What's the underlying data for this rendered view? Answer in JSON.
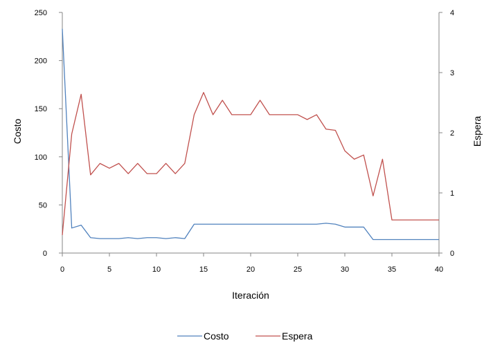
{
  "chart_data": {
    "type": "line",
    "title": "",
    "xlabel": "Iteración",
    "ylabel_left": "Costo",
    "ylabel_right": "Espera",
    "xlim": [
      0,
      40
    ],
    "ylim_left": [
      0,
      250
    ],
    "ylim_right": [
      0,
      4
    ],
    "x_ticks": [
      0,
      5,
      10,
      15,
      20,
      25,
      30,
      35,
      40
    ],
    "y_left_ticks": [
      0,
      50,
      100,
      150,
      200,
      250
    ],
    "y_right_ticks": [
      0,
      1,
      2,
      3,
      4
    ],
    "grid": false,
    "legend_position": "bottom",
    "x": [
      0,
      1,
      2,
      3,
      4,
      5,
      6,
      7,
      8,
      9,
      10,
      11,
      12,
      13,
      14,
      15,
      16,
      17,
      18,
      19,
      20,
      21,
      22,
      23,
      24,
      25,
      26,
      27,
      28,
      29,
      30,
      31,
      32,
      33,
      34,
      35,
      36,
      37,
      38,
      39,
      40
    ],
    "series": [
      {
        "name": "Costo",
        "axis": "left",
        "color": "#4F81BD",
        "values": [
          233,
          26,
          29,
          16,
          15,
          15,
          15,
          16,
          15,
          16,
          16,
          15,
          16,
          15,
          30,
          30,
          30,
          30,
          30,
          30,
          30,
          30,
          30,
          30,
          30,
          30,
          30,
          30,
          31,
          30,
          27,
          27,
          27,
          14,
          14,
          14,
          14,
          14,
          14,
          14,
          14
        ]
      },
      {
        "name": "Espera",
        "axis": "right",
        "color": "#C0504D",
        "values": [
          0.3,
          1.98,
          2.64,
          1.3,
          1.49,
          1.41,
          1.49,
          1.32,
          1.49,
          1.32,
          1.32,
          1.49,
          1.32,
          1.49,
          2.3,
          2.67,
          2.3,
          2.54,
          2.3,
          2.3,
          2.3,
          2.54,
          2.3,
          2.3,
          2.3,
          2.3,
          2.22,
          2.3,
          2.06,
          2.04,
          1.7,
          1.56,
          1.63,
          0.95,
          1.56,
          0.55,
          0.55,
          0.55,
          0.55,
          0.55,
          0.55
        ]
      }
    ]
  }
}
